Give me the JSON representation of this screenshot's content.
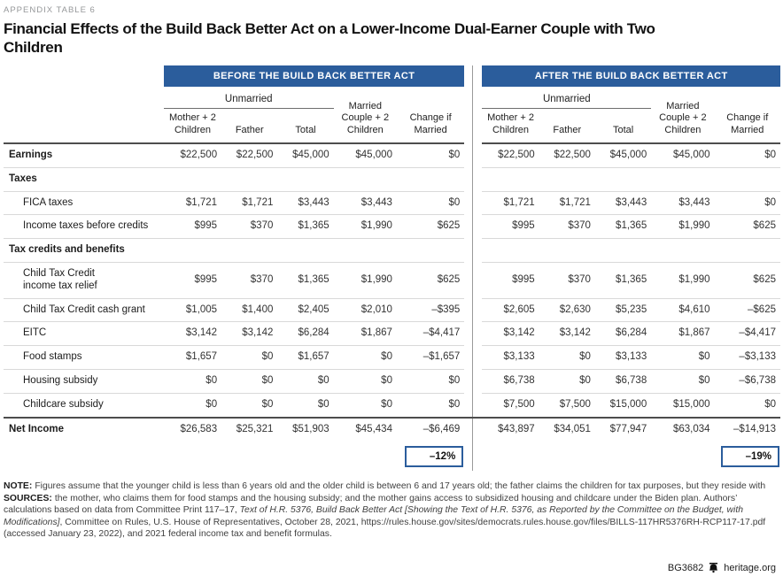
{
  "eyebrow": "APPENDIX TABLE 6",
  "title": "Financial Effects of the Build Back Better Act on a Lower-Income Dual-Earner Couple with Two Children",
  "panels": [
    {
      "title": "BEFORE THE BUILD BACK BETTER ACT"
    },
    {
      "title": "AFTER THE BUILD BACK BETTER ACT"
    }
  ],
  "columns": {
    "group_label": "Unmarried",
    "cols": [
      "Mother + 2 Children",
      "Father",
      "Total",
      "Married Couple + 2 Children",
      "Change if Married"
    ]
  },
  "rows": [
    {
      "label": "Earnings",
      "type": "bold",
      "before": [
        "$22,500",
        "$22,500",
        "$45,000",
        "$45,000",
        "$0"
      ],
      "after": [
        "$22,500",
        "$22,500",
        "$45,000",
        "$45,000",
        "$0"
      ]
    },
    {
      "label": "Taxes",
      "type": "section",
      "before": null,
      "after": null
    },
    {
      "label": "FICA taxes",
      "type": "sub",
      "before": [
        "$1,721",
        "$1,721",
        "$3,443",
        "$3,443",
        "$0"
      ],
      "after": [
        "$1,721",
        "$1,721",
        "$3,443",
        "$3,443",
        "$0"
      ]
    },
    {
      "label": "Income taxes before credits",
      "type": "sub",
      "before": [
        "$995",
        "$370",
        "$1,365",
        "$1,990",
        "$625"
      ],
      "after": [
        "$995",
        "$370",
        "$1,365",
        "$1,990",
        "$625"
      ]
    },
    {
      "label": "Tax credits and benefits",
      "type": "section",
      "before": null,
      "after": null
    },
    {
      "label": "Child Tax Credit\nincome tax relief",
      "type": "sub",
      "before": [
        "$995",
        "$370",
        "$1,365",
        "$1,990",
        "$625"
      ],
      "after": [
        "$995",
        "$370",
        "$1,365",
        "$1,990",
        "$625"
      ]
    },
    {
      "label": "Child Tax Credit cash grant",
      "type": "sub",
      "before": [
        "$1,005",
        "$1,400",
        "$2,405",
        "$2,010",
        "–$395"
      ],
      "after": [
        "$2,605",
        "$2,630",
        "$5,235",
        "$4,610",
        "–$625"
      ]
    },
    {
      "label": "EITC",
      "type": "sub",
      "before": [
        "$3,142",
        "$3,142",
        "$6,284",
        "$1,867",
        "–$4,417"
      ],
      "after": [
        "$3,142",
        "$3,142",
        "$6,284",
        "$1,867",
        "–$4,417"
      ]
    },
    {
      "label": "Food stamps",
      "type": "sub",
      "before": [
        "$1,657",
        "$0",
        "$1,657",
        "$0",
        "–$1,657"
      ],
      "after": [
        "$3,133",
        "$0",
        "$3,133",
        "$0",
        "–$3,133"
      ]
    },
    {
      "label": "Housing subsidy",
      "type": "sub",
      "before": [
        "$0",
        "$0",
        "$0",
        "$0",
        "$0"
      ],
      "after": [
        "$6,738",
        "$0",
        "$6,738",
        "$0",
        "–$6,738"
      ]
    },
    {
      "label": "Childcare subsidy",
      "type": "sub",
      "before": [
        "$0",
        "$0",
        "$0",
        "$0",
        "$0"
      ],
      "after": [
        "$7,500",
        "$7,500",
        "$15,000",
        "$15,000",
        "$0"
      ]
    },
    {
      "label": "Net Income",
      "type": "total",
      "before": [
        "$26,583",
        "$25,321",
        "$51,903",
        "$45,434",
        "–$6,469"
      ],
      "after": [
        "$43,897",
        "$34,051",
        "$77,947",
        "$63,034",
        "–$14,913"
      ]
    }
  ],
  "badges": {
    "before": "–12%",
    "after": "–19%"
  },
  "note": {
    "label": "NOTE:",
    "text": "Figures assume that the younger child is less than 6 years old and the older child is between 6 and 17 years old; the father claims the children for tax purposes, but they reside with the mother, who claims them for food stamps and the housing subsidy; and the mother gains access to subsidized housing and childcare under the Biden plan."
  },
  "sources": {
    "label": "SOURCES:",
    "pre": "Authors’ calculations based on data from Committee Print 117–17, ",
    "italic": "Text of H.R. 5376, Build Back Better Act [Showing the Text of H.R. 5376, as Reported by the Committee on the Budget, with Modifications]",
    "post": ", Committee on Rules, U.S. House of Representatives, October 28, 2021, https://rules.house.gov/sites/democrats.rules.house.gov/files/BILLS-117HR5376RH-RCP117-17.pdf (accessed January 23, 2022), and 2021 federal income tax and benefit formulas."
  },
  "footer": {
    "doc_id": "BG3682",
    "site": "heritage.org",
    "logo_icon": "liberty-bell-icon"
  }
}
